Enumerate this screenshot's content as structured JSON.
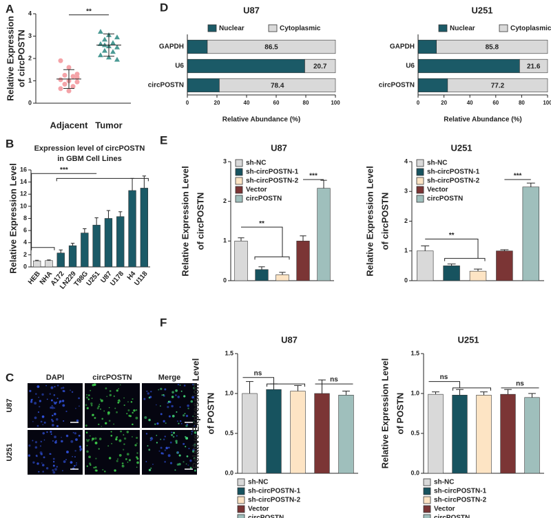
{
  "chart_data": [
    {
      "type": "dot",
      "panel_label": "A",
      "y_label": [
        "Relative Expression",
        "of circPOSTN"
      ],
      "ylim": [
        0,
        4
      ],
      "yticks": [
        0,
        1,
        2,
        3,
        4
      ],
      "annotations": [
        "**"
      ],
      "series": [
        {
          "name": "Adjacent",
          "color": "#f4a3a8",
          "marker": "circle",
          "values": [
            1.9,
            1.6,
            1.3,
            1.25,
            1.2,
            1.05,
            1.0,
            0.95,
            0.85,
            0.75,
            0.65,
            0.55,
            1.15
          ],
          "mean": 1.08,
          "sd": 0.42
        },
        {
          "name": "Tumor",
          "color": "#4a9a94",
          "marker": "triangle",
          "values": [
            3.2,
            3.05,
            2.95,
            2.85,
            2.7,
            2.65,
            2.55,
            2.5,
            2.35,
            2.3,
            2.15,
            2.05,
            1.95,
            2.6
          ],
          "mean": 2.6,
          "sd": 0.5
        }
      ]
    },
    {
      "type": "bar",
      "panel_label": "B",
      "title": [
        "Expression level of circPOSTN",
        "in GBM Cell Lines"
      ],
      "y_label": [
        "Relative Expression Level"
      ],
      "ylim": [
        0,
        16
      ],
      "yticks": [
        0,
        2,
        4,
        6,
        8,
        10,
        12,
        14,
        16
      ],
      "annotations": [
        "***"
      ],
      "categories": [
        "HEB",
        "NHA",
        "A172",
        "LN229",
        "T98G",
        "U251",
        "U87",
        "U178",
        "H4",
        "U118"
      ],
      "colors": [
        "#d9d9d9",
        "#d9d9d9",
        "#1b5a67",
        "#1b5a67",
        "#1b5a67",
        "#1b5a67",
        "#1b5a67",
        "#1b5a67",
        "#1b5a67",
        "#1b5a67"
      ],
      "values": [
        1.0,
        1.05,
        2.3,
        3.5,
        5.6,
        6.9,
        8.0,
        8.3,
        12.6,
        13.0
      ],
      "errors": [
        0.1,
        0.1,
        0.5,
        0.4,
        0.7,
        1.2,
        1.3,
        0.8,
        2.0,
        2.0
      ]
    },
    {
      "type": "micrograph",
      "panel_label": "C",
      "column_labels": [
        "DAPI",
        "circPOSTN",
        "Merge"
      ],
      "row_labels": [
        "U87",
        "U251"
      ]
    },
    {
      "type": "stacked_barh",
      "panel_label": "D",
      "title": "U87",
      "x_label": "Relative Abundance (%)",
      "xlim": [
        0,
        100
      ],
      "xticks": [
        0,
        20,
        40,
        60,
        80,
        100
      ],
      "categories": [
        "GAPDH",
        "U6",
        "circPOSTN"
      ],
      "series": [
        {
          "name": "Nuclear",
          "color": "#1b5a67",
          "values": [
            13.5,
            79.3,
            21.6
          ]
        },
        {
          "name": "Cytoplasmic",
          "color": "#d9d9d9",
          "labels": true,
          "values": [
            86.5,
            20.7,
            78.4
          ]
        }
      ]
    },
    {
      "type": "stacked_barh",
      "title": "U251",
      "x_label": "Relative Abundance (%)",
      "xlim": [
        0,
        100
      ],
      "xticks": [
        0,
        20,
        40,
        60,
        80,
        100
      ],
      "categories": [
        "GAPDH",
        "U6",
        "circPOSTN"
      ],
      "series": [
        {
          "name": "Nuclear",
          "color": "#1b5a67",
          "values": [
            14.2,
            78.4,
            22.8
          ]
        },
        {
          "name": "Cytoplasmic",
          "color": "#d9d9d9",
          "labels": true,
          "values": [
            85.8,
            21.6,
            77.2
          ]
        }
      ]
    },
    {
      "type": "bar",
      "panel_label": "E",
      "title": "U87",
      "y_label": [
        "Relative Expression Level",
        "of circPOSTN"
      ],
      "ylim": [
        0,
        3
      ],
      "yticks": [
        0,
        1,
        2,
        3
      ],
      "annotations": [
        "**",
        "***"
      ],
      "legend": [
        "sh-NC",
        "sh-circPOSTN-1",
        "sh-circPOSTN-2",
        "Vector",
        "circPOSTN"
      ],
      "colors": [
        "#d9d9d9",
        "#17535f",
        "#fde4c4",
        "#7b3535",
        "#9fbfbc"
      ],
      "values": [
        1.0,
        0.28,
        0.15,
        1.0,
        2.33
      ],
      "errors": [
        0.08,
        0.07,
        0.06,
        0.13,
        0.2
      ]
    },
    {
      "type": "bar",
      "title": "U251",
      "y_label": [
        "Relative Expression Level",
        "of circPOSTN"
      ],
      "ylim": [
        0,
        4
      ],
      "yticks": [
        0,
        1,
        2,
        3,
        4
      ],
      "annotations": [
        "**",
        "***"
      ],
      "legend": [
        "sh-NC",
        "sh-circPOSTN-1",
        "sh-circPOSTN-2",
        "Vector",
        "circPOSTN"
      ],
      "colors": [
        "#d9d9d9",
        "#17535f",
        "#fde4c4",
        "#7b3535",
        "#9fbfbc"
      ],
      "values": [
        1.0,
        0.5,
        0.32,
        1.0,
        3.15
      ],
      "errors": [
        0.17,
        0.06,
        0.07,
        0.04,
        0.13
      ]
    },
    {
      "type": "bar",
      "panel_label": "F",
      "title": "U87",
      "y_label": [
        "Relative Expression Level",
        "of POSTN"
      ],
      "ylim": [
        0,
        1.5
      ],
      "yticks": [
        {
          "value": 0,
          "label": "0.0"
        },
        0.5,
        {
          "value": 1,
          "label": "1.0"
        },
        1.5
      ],
      "annotations": [
        "ns",
        "ns"
      ],
      "legend": [
        "sh-NC",
        "sh-circPOSTN-1",
        "sh-circPOSTN-2",
        "Vector",
        "circPOSTN"
      ],
      "colors": [
        "#d9d9d9",
        "#17535f",
        "#fde4c4",
        "#7b3535",
        "#9fbfbc"
      ],
      "values": [
        1.0,
        1.05,
        1.03,
        1.0,
        0.98
      ],
      "errors": [
        0.15,
        0.07,
        0.07,
        0.17,
        0.05
      ]
    },
    {
      "type": "bar",
      "title": "U251",
      "y_label": [
        "Relative Expression Level",
        "of POSTN"
      ],
      "ylim": [
        0,
        1.5
      ],
      "yticks": [
        {
          "value": 0,
          "label": "0.0"
        },
        0.5,
        {
          "value": 1,
          "label": "1.0"
        },
        1.5
      ],
      "annotations": [
        "ns",
        "ns"
      ],
      "legend": [
        "sh-NC",
        "sh-circPOSTN-1",
        "sh-circPOSTN-2",
        "Vector",
        "circPOSTN"
      ],
      "colors": [
        "#d9d9d9",
        "#17535f",
        "#fde4c4",
        "#7b3535",
        "#9fbfbc"
      ],
      "values": [
        0.99,
        0.98,
        0.98,
        0.99,
        0.95
      ],
      "errors": [
        0.03,
        0.07,
        0.04,
        0.06,
        0.05
      ]
    }
  ]
}
